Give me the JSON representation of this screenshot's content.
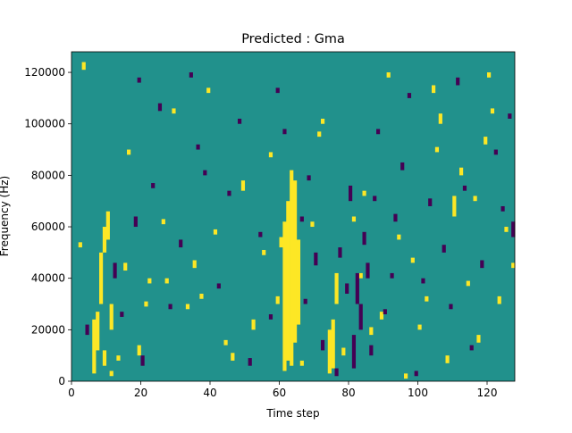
{
  "chart_data": {
    "type": "heatmap",
    "title": "Predicted : Gma",
    "xlabel": "Time step",
    "ylabel": "Frequency (Hz)",
    "xlim": [
      0,
      128
    ],
    "ylim": [
      0,
      128000
    ],
    "x_ticks": [
      0,
      20,
      40,
      60,
      80,
      100,
      120
    ],
    "y_ticks": [
      0,
      20000,
      40000,
      60000,
      80000,
      100000,
      120000
    ],
    "value_levels": [
      -1,
      0,
      1
    ],
    "colormap": {
      "-1": "#440154",
      "0": "#21918c",
      "1": "#fde725"
    },
    "background_value": 0,
    "cells_value_1": [
      [
        6,
        3,
        24
      ],
      [
        7,
        12,
        27
      ],
      [
        8,
        30,
        50
      ],
      [
        9,
        50,
        60
      ],
      [
        9,
        6,
        12
      ],
      [
        10,
        55,
        66
      ],
      [
        11,
        20,
        30
      ],
      [
        11,
        2,
        4
      ],
      [
        13,
        8,
        10
      ],
      [
        16,
        88,
        90
      ],
      [
        19,
        10,
        14
      ],
      [
        21,
        29,
        31
      ],
      [
        22,
        38,
        40
      ],
      [
        27,
        38,
        40
      ],
      [
        35,
        44,
        47
      ],
      [
        37,
        32,
        34
      ],
      [
        41,
        57,
        59
      ],
      [
        46,
        8,
        11
      ],
      [
        49,
        74,
        78
      ],
      [
        52,
        20,
        24
      ],
      [
        59,
        30,
        33
      ],
      [
        60,
        52,
        56
      ],
      [
        61,
        4,
        62
      ],
      [
        62,
        8,
        70
      ],
      [
        63,
        6,
        82
      ],
      [
        64,
        15,
        78
      ],
      [
        65,
        22,
        55
      ],
      [
        66,
        6,
        8
      ],
      [
        72,
        100,
        102
      ],
      [
        74,
        3,
        20
      ],
      [
        75,
        5,
        24
      ],
      [
        76,
        30,
        42
      ],
      [
        78,
        10,
        13
      ],
      [
        81,
        62,
        64
      ],
      [
        83,
        40,
        42
      ],
      [
        86,
        18,
        21
      ],
      [
        89,
        24,
        27
      ],
      [
        96,
        1,
        3
      ],
      [
        98,
        46,
        48
      ],
      [
        102,
        31,
        33
      ],
      [
        105,
        89,
        91
      ],
      [
        106,
        100,
        104
      ],
      [
        108,
        7,
        10
      ],
      [
        110,
        64,
        72
      ],
      [
        112,
        80,
        83
      ],
      [
        117,
        15,
        18
      ],
      [
        119,
        92,
        95
      ],
      [
        121,
        104,
        106
      ],
      [
        123,
        30,
        33
      ],
      [
        125,
        58,
        60
      ],
      [
        2,
        52,
        54
      ],
      [
        3,
        121,
        124
      ],
      [
        15,
        43,
        46
      ],
      [
        26,
        61,
        63
      ],
      [
        29,
        104,
        106
      ],
      [
        33,
        28,
        30
      ],
      [
        39,
        112,
        114
      ],
      [
        44,
        14,
        16
      ],
      [
        55,
        49,
        51
      ],
      [
        57,
        87,
        89
      ],
      [
        69,
        60,
        62
      ],
      [
        71,
        95,
        97
      ],
      [
        84,
        72,
        74
      ],
      [
        91,
        118,
        120
      ],
      [
        94,
        55,
        57
      ],
      [
        100,
        20,
        22
      ],
      [
        104,
        112,
        115
      ],
      [
        114,
        37,
        39
      ],
      [
        116,
        70,
        72
      ],
      [
        120,
        118,
        120
      ],
      [
        127,
        44,
        46
      ]
    ],
    "cells_value_neg1": [
      [
        4,
        18,
        22
      ],
      [
        12,
        40,
        46
      ],
      [
        14,
        25,
        27
      ],
      [
        18,
        60,
        64
      ],
      [
        20,
        6,
        10
      ],
      [
        23,
        75,
        77
      ],
      [
        25,
        105,
        108
      ],
      [
        28,
        28,
        30
      ],
      [
        31,
        52,
        55
      ],
      [
        34,
        118,
        120
      ],
      [
        38,
        80,
        82
      ],
      [
        42,
        36,
        38
      ],
      [
        45,
        72,
        74
      ],
      [
        48,
        100,
        102
      ],
      [
        51,
        6,
        9
      ],
      [
        54,
        56,
        58
      ],
      [
        57,
        24,
        26
      ],
      [
        59,
        112,
        114
      ],
      [
        66,
        62,
        64
      ],
      [
        67,
        30,
        32
      ],
      [
        68,
        78,
        80
      ],
      [
        70,
        45,
        50
      ],
      [
        72,
        12,
        16
      ],
      [
        76,
        2,
        5
      ],
      [
        77,
        48,
        52
      ],
      [
        79,
        34,
        38
      ],
      [
        80,
        70,
        76
      ],
      [
        81,
        5,
        18
      ],
      [
        82,
        30,
        42
      ],
      [
        83,
        20,
        30
      ],
      [
        84,
        53,
        58
      ],
      [
        85,
        40,
        46
      ],
      [
        86,
        10,
        14
      ],
      [
        87,
        70,
        72
      ],
      [
        88,
        96,
        98
      ],
      [
        90,
        26,
        28
      ],
      [
        92,
        40,
        42
      ],
      [
        93,
        62,
        65
      ],
      [
        95,
        82,
        85
      ],
      [
        97,
        110,
        112
      ],
      [
        99,
        2,
        4
      ],
      [
        101,
        38,
        40
      ],
      [
        103,
        68,
        71
      ],
      [
        107,
        50,
        53
      ],
      [
        109,
        28,
        30
      ],
      [
        111,
        115,
        118
      ],
      [
        113,
        74,
        76
      ],
      [
        115,
        12,
        14
      ],
      [
        118,
        44,
        47
      ],
      [
        122,
        88,
        90
      ],
      [
        124,
        66,
        68
      ],
      [
        126,
        102,
        104
      ],
      [
        127,
        56,
        62
      ],
      [
        36,
        90,
        92
      ],
      [
        61,
        96,
        98
      ],
      [
        19,
        116,
        118
      ]
    ]
  }
}
